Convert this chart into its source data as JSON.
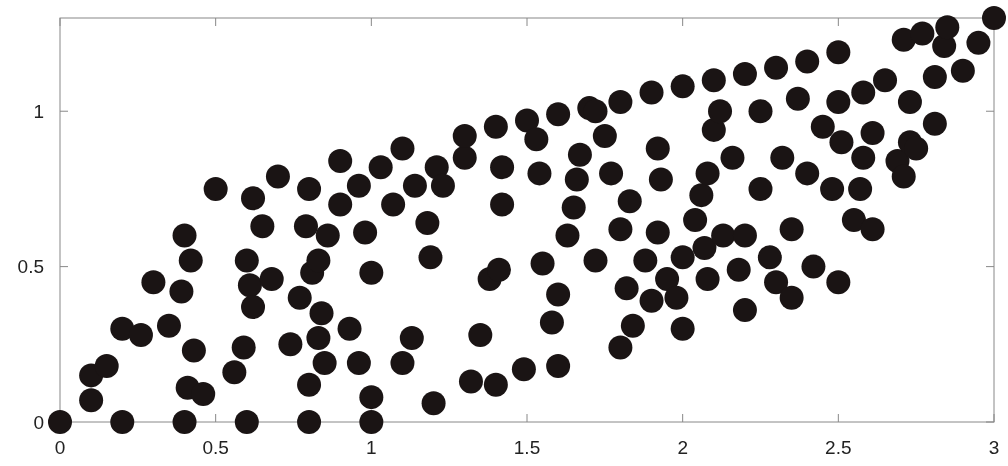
{
  "chart_data": {
    "type": "scatter",
    "xlim": [
      0,
      3
    ],
    "ylim": [
      0,
      1.3
    ],
    "xticks": [
      0,
      0.5,
      1,
      1.5,
      2,
      2.5,
      3
    ],
    "yticks": [
      0,
      0.5,
      1
    ],
    "grid": false,
    "marker": "circle",
    "series": [
      {
        "color": "#1a1414",
        "x": [
          0,
          0.1,
          0.1,
          0.15,
          0.2,
          0.2,
          0.26,
          0.3,
          0.35,
          0.39,
          0.4,
          0.42,
          0.4,
          0.41,
          0.43,
          0.46,
          0.5,
          0.56,
          0.59,
          0.6,
          0.6,
          0.61,
          0.62,
          0.62,
          0.65,
          0.68,
          0.7,
          0.74,
          0.77,
          0.79,
          0.8,
          0.8,
          0.8,
          0.81,
          0.83,
          0.83,
          0.84,
          0.85,
          0.86,
          0.9,
          0.9,
          0.93,
          0.96,
          0.96,
          0.98,
          1.0,
          1.0,
          1.0,
          1.03,
          1.07,
          1.1,
          1.1,
          1.13,
          1.14,
          1.18,
          1.19,
          1.2,
          1.21,
          1.23,
          1.3,
          1.3,
          1.32,
          1.35,
          1.38,
          1.4,
          1.4,
          1.41,
          1.42,
          1.42,
          1.49,
          1.5,
          1.53,
          1.54,
          1.55,
          1.58,
          1.6,
          1.6,
          1.6,
          1.63,
          1.65,
          1.66,
          1.67,
          1.7,
          1.72,
          1.72,
          1.75,
          1.77,
          1.8,
          1.8,
          1.8,
          1.82,
          1.83,
          1.84,
          1.88,
          1.9,
          1.9,
          1.92,
          1.92,
          1.93,
          1.95,
          1.98,
          2.0,
          2.0,
          2.0,
          2.04,
          2.06,
          2.07,
          2.08,
          2.08,
          2.1,
          2.1,
          2.12,
          2.13,
          2.16,
          2.18,
          2.2,
          2.2,
          2.2,
          2.25,
          2.25,
          2.28,
          2.3,
          2.3,
          2.32,
          2.35,
          2.35,
          2.37,
          2.4,
          2.4,
          2.42,
          2.45,
          2.48,
          2.5,
          2.5,
          2.5,
          2.51,
          2.55,
          2.57,
          2.58,
          2.58,
          2.61,
          2.61,
          2.65,
          2.69,
          2.71,
          2.71,
          2.73,
          2.73,
          2.75,
          2.77,
          2.81,
          2.81,
          2.84,
          2.85,
          2.9,
          2.95,
          3.0
        ],
        "values": [
          0,
          0.15,
          0.07,
          0.18,
          0,
          0.3,
          0.28,
          0.45,
          0.31,
          0.42,
          0.6,
          0.52,
          0,
          0.11,
          0.23,
          0.09,
          0.75,
          0.16,
          0.24,
          0,
          0.52,
          0.44,
          0.72,
          0.37,
          0.63,
          0.46,
          0.79,
          0.25,
          0.4,
          0.63,
          0.75,
          0,
          0.12,
          0.48,
          0.52,
          0.27,
          0.35,
          0.19,
          0.6,
          0.7,
          0.84,
          0.3,
          0.76,
          0.19,
          0.61,
          0.48,
          0.08,
          0,
          0.82,
          0.7,
          0.19,
          0.88,
          0.27,
          0.76,
          0.64,
          0.53,
          0.06,
          0.82,
          0.76,
          0.85,
          0.92,
          0.13,
          0.28,
          0.46,
          0.12,
          0.95,
          0.49,
          0.82,
          0.7,
          0.17,
          0.97,
          0.91,
          0.8,
          0.51,
          0.32,
          0.41,
          0.18,
          0.99,
          0.6,
          0.69,
          0.78,
          0.86,
          1.01,
          1.0,
          0.52,
          0.92,
          0.8,
          1.03,
          0.62,
          0.24,
          0.43,
          0.71,
          0.31,
          0.52,
          1.06,
          0.39,
          0.61,
          0.88,
          0.78,
          0.46,
          0.4,
          0.53,
          1.08,
          0.3,
          0.65,
          0.73,
          0.56,
          0.46,
          0.8,
          0.94,
          1.1,
          1.0,
          0.6,
          0.85,
          0.49,
          1.12,
          0.6,
          0.36,
          0.75,
          1.0,
          0.53,
          1.14,
          0.45,
          0.85,
          0.62,
          0.4,
          1.04,
          1.16,
          0.8,
          0.5,
          0.95,
          0.75,
          1.03,
          1.19,
          0.45,
          0.9,
          0.65,
          0.75,
          1.06,
          0.85,
          0.62,
          0.93,
          1.1,
          0.84,
          0.79,
          1.23,
          1.03,
          0.9,
          0.88,
          1.25,
          0.96,
          1.11,
          1.21,
          1.27,
          1.13,
          1.22,
          1.3
        ]
      }
    ]
  }
}
